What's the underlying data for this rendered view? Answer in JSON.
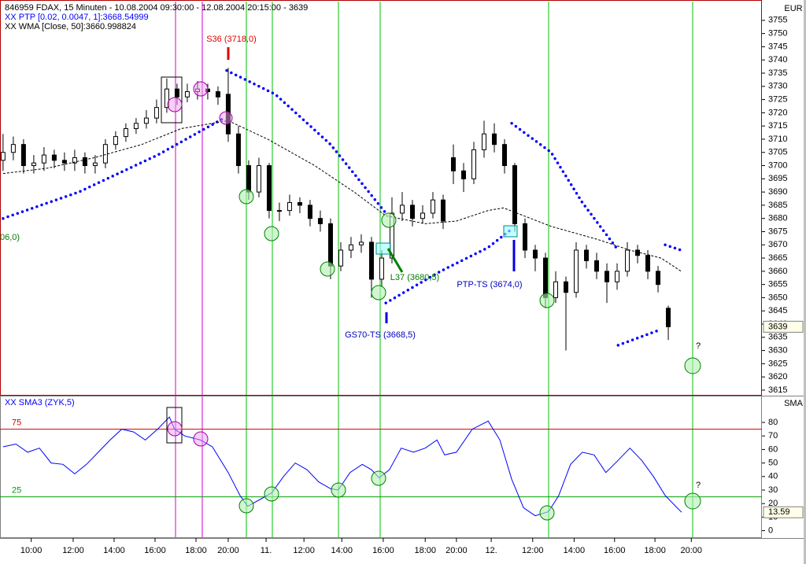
{
  "chart_data": [
    {
      "type": "candlestick",
      "title": "846959  FDAX, 15 Minuten - 10.08.2004 09:30:00 - 12.08.2004 20:15:00 - 3639",
      "axis_label": "EUR",
      "x": [
        0,
        2,
        4,
        6,
        8,
        10,
        12,
        14,
        16,
        18,
        20,
        22,
        24,
        26,
        28,
        30,
        32,
        34,
        36,
        38,
        40,
        42,
        44,
        46,
        48,
        50,
        52,
        54,
        56,
        58,
        60,
        62,
        64,
        66,
        68,
        70,
        72,
        74,
        76,
        78,
        80,
        82,
        84,
        86,
        88,
        90,
        92,
        94,
        96,
        98,
        100,
        102,
        104,
        106,
        108,
        110,
        112,
        114,
        116,
        118,
        120,
        122,
        124,
        126,
        128,
        130
      ],
      "open": [
        3702,
        3705,
        3708,
        3700,
        3701,
        3704,
        3702,
        3701,
        3703,
        3700,
        3701,
        3708,
        3711,
        3714,
        3716,
        3718,
        3722,
        3729,
        3726,
        3728,
        3729,
        3728,
        3727,
        3712,
        3700,
        3690,
        3700,
        3683,
        3683,
        3686,
        3685,
        3680,
        3678,
        3662,
        3668,
        3670,
        3671,
        3657,
        3665,
        3682,
        3685,
        3680,
        3682,
        3687,
        3703,
        3698,
        3695,
        3706,
        3712,
        3708,
        3700,
        3678,
        3668,
        3665,
        3650,
        3656,
        3652,
        3668,
        3664,
        3660,
        3656,
        3660,
        3668,
        3666,
        3660,
        3646
      ],
      "high": [
        3712,
        3711,
        3710,
        3704,
        3707,
        3706,
        3705,
        3706,
        3705,
        3704,
        3710,
        3713,
        3716,
        3718,
        3721,
        3725,
        3733,
        3731,
        3731,
        3732,
        3731,
        3730,
        3737,
        3715,
        3702,
        3703,
        3701,
        3686,
        3689,
        3688,
        3687,
        3683,
        3680,
        3671,
        3673,
        3674,
        3673,
        3668,
        3688,
        3690,
        3687,
        3685,
        3690,
        3689,
        3708,
        3701,
        3709,
        3717,
        3716,
        3710,
        3701,
        3680,
        3670,
        3667,
        3660,
        3658,
        3671,
        3670,
        3667,
        3663,
        3663,
        3671,
        3670,
        3668,
        3662,
        3647
      ],
      "low": [
        3698,
        3702,
        3697,
        3697,
        3698,
        3699,
        3698,
        3698,
        3697,
        3697,
        3699,
        3706,
        3709,
        3712,
        3714,
        3716,
        3720,
        3723,
        3724,
        3725,
        3725,
        3723,
        3709,
        3697,
        3687,
        3688,
        3680,
        3679,
        3681,
        3682,
        3677,
        3675,
        3657,
        3660,
        3665,
        3667,
        3650,
        3654,
        3663,
        3679,
        3677,
        3678,
        3680,
        3676,
        3693,
        3690,
        3693,
        3703,
        3705,
        3697,
        3675,
        3665,
        3660,
        3646,
        3648,
        3630,
        3650,
        3661,
        3657,
        3648,
        3653,
        3658,
        3663,
        3657,
        3652,
        3634
      ],
      "close": [
        3705,
        3708,
        3700,
        3701,
        3704,
        3702,
        3701,
        3703,
        3700,
        3701,
        3708,
        3711,
        3714,
        3716,
        3718,
        3722,
        3729,
        3726,
        3728,
        3729,
        3728,
        3726,
        3712,
        3700,
        3690,
        3700,
        3683,
        3683,
        3686,
        3685,
        3680,
        3678,
        3662,
        3668,
        3670,
        3671,
        3657,
        3665,
        3682,
        3685,
        3680,
        3682,
        3687,
        3679,
        3698,
        3695,
        3706,
        3712,
        3708,
        3700,
        3678,
        3668,
        3665,
        3650,
        3656,
        3652,
        3668,
        3664,
        3660,
        3656,
        3660,
        3668,
        3666,
        3660,
        3655,
        3639
      ],
      "color": "#000000",
      "xlim": [
        -0.6,
        148.3
      ],
      "ylim": [
        3613.2,
        3762.1
      ],
      "yticks": [
        3615,
        3620,
        3625,
        3630,
        3635,
        3640,
        3645,
        3650,
        3655,
        3660,
        3665,
        3670,
        3675,
        3680,
        3685,
        3690,
        3695,
        3700,
        3705,
        3710,
        3715,
        3720,
        3725,
        3730,
        3735,
        3740,
        3745,
        3750,
        3755
      ],
      "overlays": [
        {
          "name": "XX PTP [0.02, 0.0047, 1]:3668.54999",
          "color": "#0000ff",
          "style": "dotted",
          "x": [
            0,
            14.8,
            30.2,
            43.2,
            null,
            43.7,
            53.2,
            64,
            74.8,
            null,
            74.8,
            85.5,
            94.8,
            99.4,
            null,
            99.4,
            107.1,
            113.2,
            120.2,
            null,
            129.4,
            132.5,
            null,
            120.2,
            128.6
          ],
          "values": [
            3680,
            3690,
            3704,
            3718,
            null,
            3736,
            3727,
            3708,
            3682,
            null,
            3648,
            3660,
            3669,
            3676,
            null,
            3716,
            3705,
            3686,
            3668,
            null,
            3670,
            3668,
            null,
            3632,
            3638
          ]
        },
        {
          "name": "XX WMA [Close, 50]:3660.998824",
          "color": "#000000",
          "style": "dashed",
          "x": [
            0,
            8.6,
            17.8,
            27.1,
            34.8,
            44,
            51.7,
            60.9,
            68.6,
            74.8,
            82.5,
            88.6,
            94.8,
            97.8,
            107.1,
            116.3,
            122.5,
            128.6,
            132.5
          ],
          "values": [
            3697,
            3699,
            3703,
            3708,
            3714,
            3717,
            3710,
            3700,
            3690,
            3681,
            3678,
            3679,
            3683,
            3684,
            3677,
            3672,
            3668,
            3665,
            3660
          ]
        }
      ],
      "annotations": [
        {
          "text": "S36 (3718,0)",
          "color": "#e00000"
        },
        {
          "text": "L37 (3680,5)",
          "color": "#008000"
        },
        {
          "text": "GS70-TS (3668,5)",
          "color": "#0000c0"
        },
        {
          "text": "PTP-TS (3674,0)",
          "color": "#0000c0"
        },
        {
          "text": "06,0)",
          "color": "#008000"
        },
        {
          "text": "?",
          "color": "#000000"
        }
      ]
    },
    {
      "type": "line",
      "axis_label": "SMA",
      "series": [
        {
          "name": "XX SMA3 (ZYK,5)",
          "color": "#0000ff",
          "x": [
            0,
            2.5,
            4.8,
            7.1,
            9.4,
            11.7,
            14,
            16.3,
            18.6,
            20.9,
            23.2,
            25.5,
            27.8,
            30.2,
            32.5,
            33.5,
            35.5,
            38.6,
            40.9,
            44,
            46.3,
            47.8,
            50.2,
            52.5,
            54.8,
            57.1,
            59.4,
            61.7,
            64,
            65.5,
            67.8,
            70.2,
            72,
            73.5,
            75.5,
            77.8,
            80.2,
            82.5,
            84.8,
            86.3,
            88.6,
            91.7,
            94.8,
            97.1,
            99.4,
            101.7,
            104,
            106.6,
            108.6,
            110.9,
            113.2,
            115.5,
            117.8,
            120.2,
            122.5,
            124.8,
            127.1,
            129.4,
            131.7,
            132.6
          ],
          "values": [
            62,
            64,
            58,
            61,
            50,
            49,
            42,
            49,
            58,
            67,
            75,
            73,
            67,
            75,
            84,
            75,
            70,
            67,
            62,
            43,
            26,
            18,
            23,
            28,
            40,
            50,
            45,
            36,
            31,
            30,
            43,
            49,
            45,
            39,
            45,
            61,
            58,
            61,
            67,
            56,
            58,
            75,
            81,
            67,
            38,
            17,
            11,
            14,
            26,
            49,
            58,
            56,
            43,
            52,
            61,
            52,
            40,
            26,
            17,
            13.59
          ]
        }
      ],
      "levels": [
        {
          "value": 75,
          "color": "#cc0000"
        },
        {
          "value": 25,
          "color": "#00a000"
        }
      ],
      "xlim": [
        -0.6,
        148.3
      ],
      "ylim": [
        -4.3,
        99.2
      ],
      "yticks": [
        0,
        10,
        20,
        30,
        40,
        50,
        60,
        70,
        80
      ],
      "xticks": [
        {
          "value": 5.5,
          "label": "10:00"
        },
        {
          "value": 13.7,
          "label": "12:00"
        },
        {
          "value": 21.7,
          "label": "14:00"
        },
        {
          "value": 29.7,
          "label": "16:00"
        },
        {
          "value": 37.7,
          "label": "18:00"
        },
        {
          "value": 44,
          "label": "20:00"
        },
        {
          "value": 51.4,
          "label": "11."
        },
        {
          "value": 58.8,
          "label": "12:00"
        },
        {
          "value": 66.2,
          "label": "14:00"
        },
        {
          "value": 74.3,
          "label": "16:00"
        },
        {
          "value": 82.5,
          "label": "18:00"
        },
        {
          "value": 88.6,
          "label": "20:00"
        },
        {
          "value": 95.4,
          "label": "12."
        },
        {
          "value": 103.5,
          "label": "12:00"
        },
        {
          "value": 111.6,
          "label": "14:00"
        },
        {
          "value": 119.5,
          "label": "16:00"
        },
        {
          "value": 127.4,
          "label": "18:00"
        },
        {
          "value": 134.5,
          "label": "20:00"
        }
      ],
      "annotations": [
        {
          "text": "?",
          "color": "#000000"
        }
      ]
    }
  ]
}
